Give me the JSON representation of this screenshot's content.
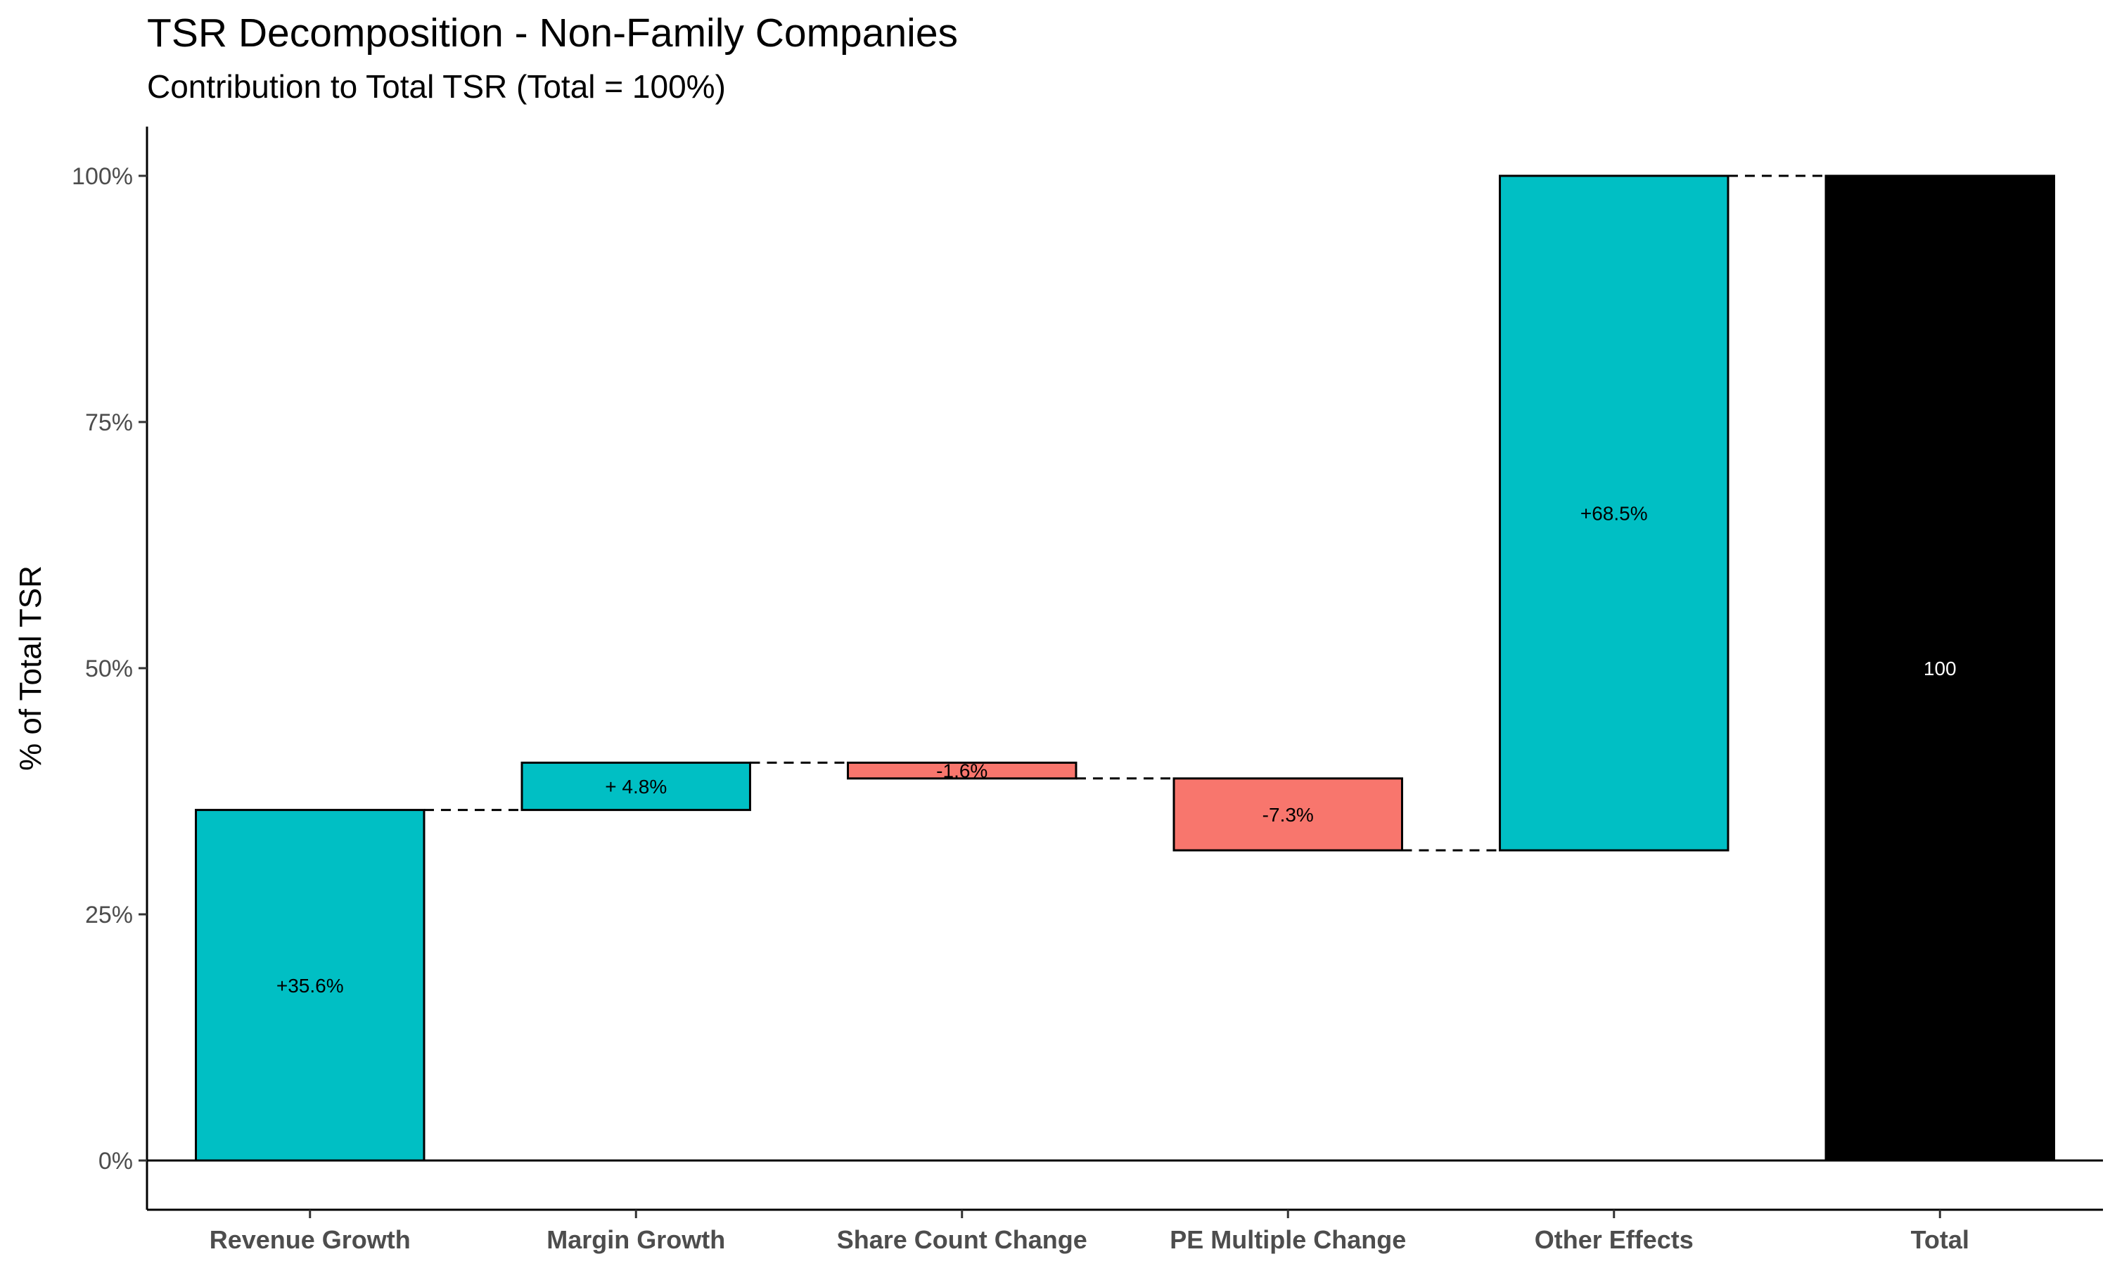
{
  "chart_data": {
    "type": "bar",
    "subtype": "waterfall",
    "title": "TSR Decomposition - Non-Family Companies",
    "subtitle": "Contribution to Total TSR (Total = 100%)",
    "xlabel": "",
    "ylabel": "% of Total TSR",
    "ylim": [
      -5,
      105
    ],
    "y_ticks": [
      0,
      25,
      50,
      75,
      100
    ],
    "y_tick_labels": [
      "0%",
      "25%",
      "50%",
      "75%",
      "100%"
    ],
    "categories": [
      "Revenue Growth",
      "Margin Growth",
      "Share Count Change",
      "PE Multiple Change",
      "Other Effects",
      "Total"
    ],
    "values": [
      35.6,
      4.8,
      -1.6,
      -7.3,
      68.5,
      100
    ],
    "labels": [
      "+35.6%",
      "+ 4.8%",
      "-1.6%",
      "-7.3%",
      "+68.5%",
      "100"
    ],
    "kinds": [
      "pos",
      "pos",
      "neg",
      "neg",
      "pos",
      "total"
    ],
    "colors": {
      "pos": "#00BFC4",
      "neg": "#F8766D",
      "total": "#000000",
      "label_default": "#000000",
      "label_total": "#ffffff"
    },
    "grid": false,
    "legend": "none"
  }
}
